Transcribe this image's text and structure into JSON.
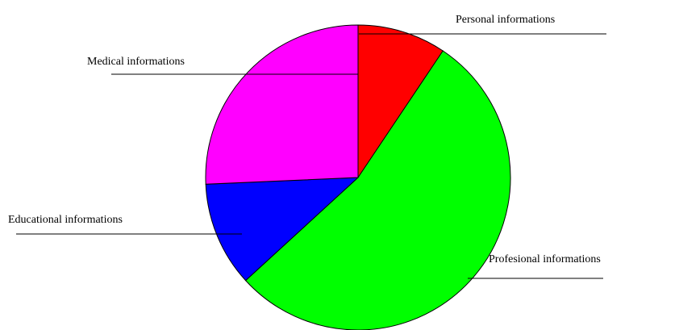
{
  "chart_data": {
    "type": "pie",
    "categories": [
      "Personal informations",
      "Profesional informations",
      "Educational informations",
      "Medical informations"
    ],
    "values": [
      9.4,
      53.8,
      11.1,
      25.7
    ],
    "colors": [
      "#ff0000",
      "#00ff00",
      "#0000ff",
      "#ff00ff"
    ]
  }
}
